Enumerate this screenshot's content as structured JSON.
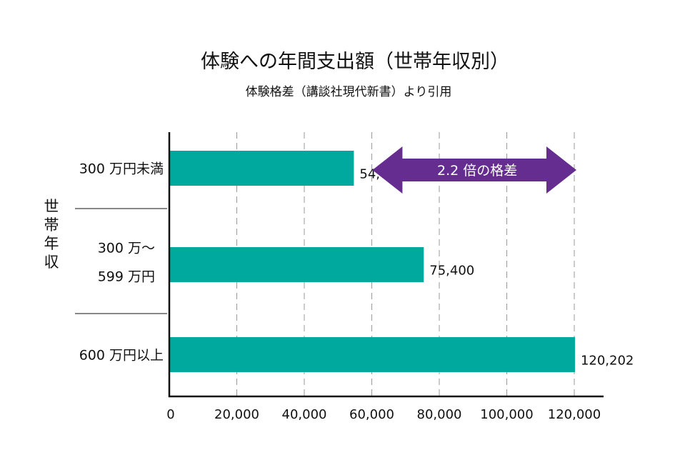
{
  "chart_data": {
    "type": "bar",
    "orientation": "horizontal",
    "title": "体験への年間支出額（世帯年収別）",
    "subtitle": "体験格差（講談社現代新書）より引用",
    "ylabel": "世帯年収",
    "xlabel": "",
    "categories": [
      [
        "300 万円未満"
      ],
      [
        "300 万～",
        "599 万円"
      ],
      [
        "600 万円以上"
      ]
    ],
    "values": [
      54690,
      75400,
      120202
    ],
    "data_labels": [
      "54,690",
      "75,400",
      "120,202"
    ],
    "xlim": [
      0,
      120000
    ],
    "x_ticks": [
      0,
      20000,
      40000,
      60000,
      80000,
      100000,
      120000
    ],
    "x_tick_labels": [
      "0",
      "20,000",
      "40,000",
      "60,000",
      "80,000",
      "100,000",
      "120,000"
    ],
    "grid": "vertical dashed",
    "annotation": {
      "text": "2.2 倍の格差",
      "shape": "double-arrow",
      "from": 54690,
      "to": 120202
    },
    "colors": {
      "bar": "#00a99d",
      "arrow": "#662d91",
      "grid": "#999999",
      "axis": "#111111"
    }
  }
}
